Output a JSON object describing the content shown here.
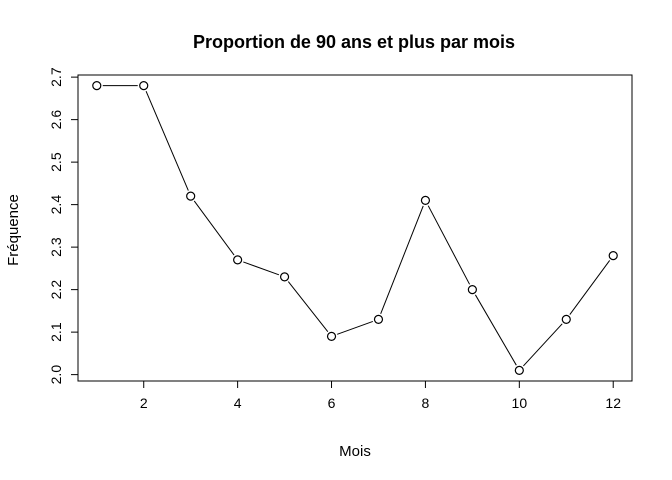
{
  "chart_data": {
    "type": "line",
    "title": "Proportion de 90 ans et plus par mois",
    "xlabel": "Mois",
    "ylabel": "Fréquence",
    "x": [
      1,
      2,
      3,
      4,
      5,
      6,
      7,
      8,
      9,
      10,
      11,
      12
    ],
    "series": [
      {
        "values": [
          2.68,
          2.68,
          2.42,
          2.27,
          2.23,
          2.09,
          2.13,
          2.41,
          2.2,
          2.01,
          2.13,
          2.28
        ]
      }
    ],
    "xlim": [
      0.6,
      12.4
    ],
    "ylim": [
      1.985,
      2.705
    ],
    "xticks": [
      2,
      4,
      6,
      8,
      10,
      12
    ],
    "yticks": [
      2.0,
      2.1,
      2.2,
      2.3,
      2.4,
      2.5,
      2.6,
      2.7
    ],
    "xtick_labels": [
      "2",
      "4",
      "6",
      "8",
      "10",
      "12"
    ],
    "ytick_labels": [
      "2.0",
      "2.1",
      "2.2",
      "2.3",
      "2.4",
      "2.5",
      "2.6",
      "2.7"
    ],
    "grid": false,
    "marker": "open-circle",
    "colors": {
      "line": "#000000",
      "marker_fill": "#ffffff",
      "frame": "#000000"
    }
  }
}
